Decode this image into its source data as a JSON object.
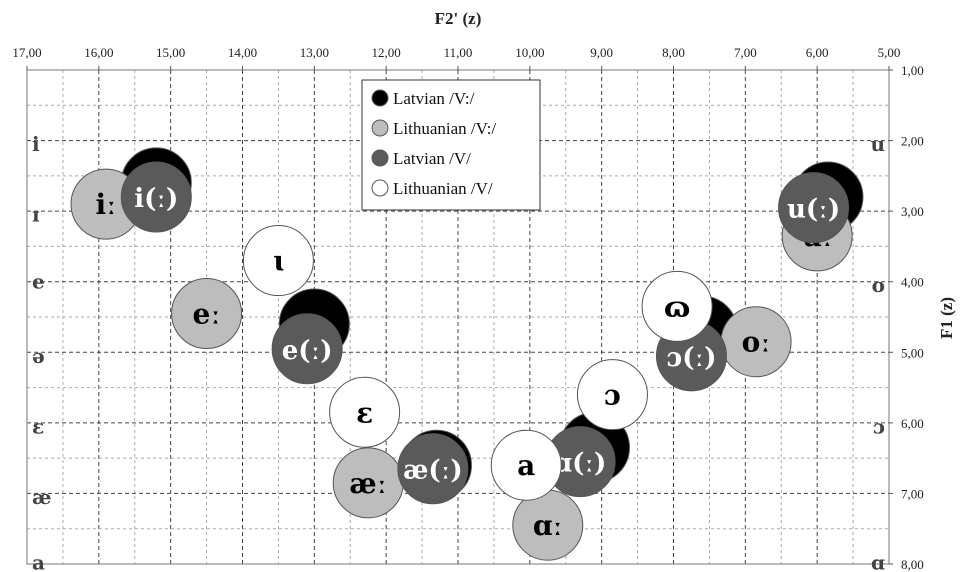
{
  "chart_data": {
    "type": "scatter",
    "title": "",
    "xlabel": "F2' (z)",
    "ylabel": "F1 (z)",
    "x_reversed": true,
    "y_reversed": true,
    "xlim": [
      17.0,
      5.0
    ],
    "ylim": [
      1.0,
      8.0
    ],
    "x_ticks": [
      "17,00",
      "16,00",
      "15,00",
      "14,00",
      "13,00",
      "12,00",
      "11,00",
      "10,00",
      "9,00",
      "8,00",
      "7,00",
      "6,00",
      "5,00"
    ],
    "y_ticks": [
      "1,00",
      "2,00",
      "3,00",
      "4,00",
      "5,00",
      "6,00",
      "7,00",
      "8,00"
    ],
    "grid": "on",
    "legend_position": "top-center",
    "series": [
      {
        "name": "Latvian /V:/",
        "color": "#000000",
        "text_color": "#ffffff",
        "points": [
          {
            "x": 15.2,
            "y": 2.6,
            "label": ""
          },
          {
            "x": 13.0,
            "y": 4.6,
            "label": ""
          },
          {
            "x": 11.3,
            "y": 6.6,
            "label": ""
          },
          {
            "x": 9.1,
            "y": 6.35,
            "label": ""
          },
          {
            "x": 7.6,
            "y": 4.7,
            "label": ""
          },
          {
            "x": 5.85,
            "y": 2.8,
            "label": ""
          }
        ]
      },
      {
        "name": "Lithuanian /V:/",
        "color": "#bdbdbd",
        "text_color": "#000000",
        "points": [
          {
            "x": 15.9,
            "y": 2.9,
            "label": "iː"
          },
          {
            "x": 14.5,
            "y": 4.45,
            "label": "eː"
          },
          {
            "x": 12.25,
            "y": 6.85,
            "label": "æː"
          },
          {
            "x": 9.75,
            "y": 7.45,
            "label": "ɑː"
          },
          {
            "x": 6.85,
            "y": 4.85,
            "label": "oː"
          },
          {
            "x": 6.0,
            "y": 3.35,
            "label": "uː"
          }
        ]
      },
      {
        "name": "Latvian /V/",
        "color": "#5a5a5a",
        "text_color": "#ffffff",
        "points": [
          {
            "x": 15.2,
            "y": 2.8,
            "label": "i(ː)"
          },
          {
            "x": 13.1,
            "y": 4.95,
            "label": "e(ː)"
          },
          {
            "x": 11.35,
            "y": 6.65,
            "label": "æ(ː)"
          },
          {
            "x": 9.3,
            "y": 6.55,
            "label": "ɑ(ː)"
          },
          {
            "x": 7.75,
            "y": 5.05,
            "label": "ɔ(ː)"
          },
          {
            "x": 6.05,
            "y": 2.95,
            "label": "u(ː)"
          }
        ]
      },
      {
        "name": "Lithuanian /V/",
        "color": "#ffffff",
        "text_color": "#000000",
        "points": [
          {
            "x": 13.5,
            "y": 3.7,
            "label": "ɩ"
          },
          {
            "x": 12.3,
            "y": 5.85,
            "label": "ɛ"
          },
          {
            "x": 10.05,
            "y": 6.6,
            "label": "a"
          },
          {
            "x": 8.85,
            "y": 5.6,
            "label": "ɔ"
          },
          {
            "x": 7.95,
            "y": 4.35,
            "label": "ɷ"
          }
        ]
      }
    ],
    "left_reference_labels": [
      {
        "label": "i",
        "y": 2.05
      },
      {
        "label": "ɪ",
        "y": 3.05
      },
      {
        "label": "e",
        "y": 4.0
      },
      {
        "label": "ə",
        "y": 5.05
      },
      {
        "label": "ɛ",
        "y": 6.05
      },
      {
        "label": "æ",
        "y": 7.05
      },
      {
        "label": "a",
        "y": 7.98
      }
    ],
    "right_reference_labels": [
      {
        "label": "u",
        "y": 2.05
      },
      {
        "label": "o",
        "y": 4.05
      },
      {
        "label": "ɔ",
        "y": 6.05
      },
      {
        "label": "ɑ",
        "y": 7.98
      }
    ]
  }
}
